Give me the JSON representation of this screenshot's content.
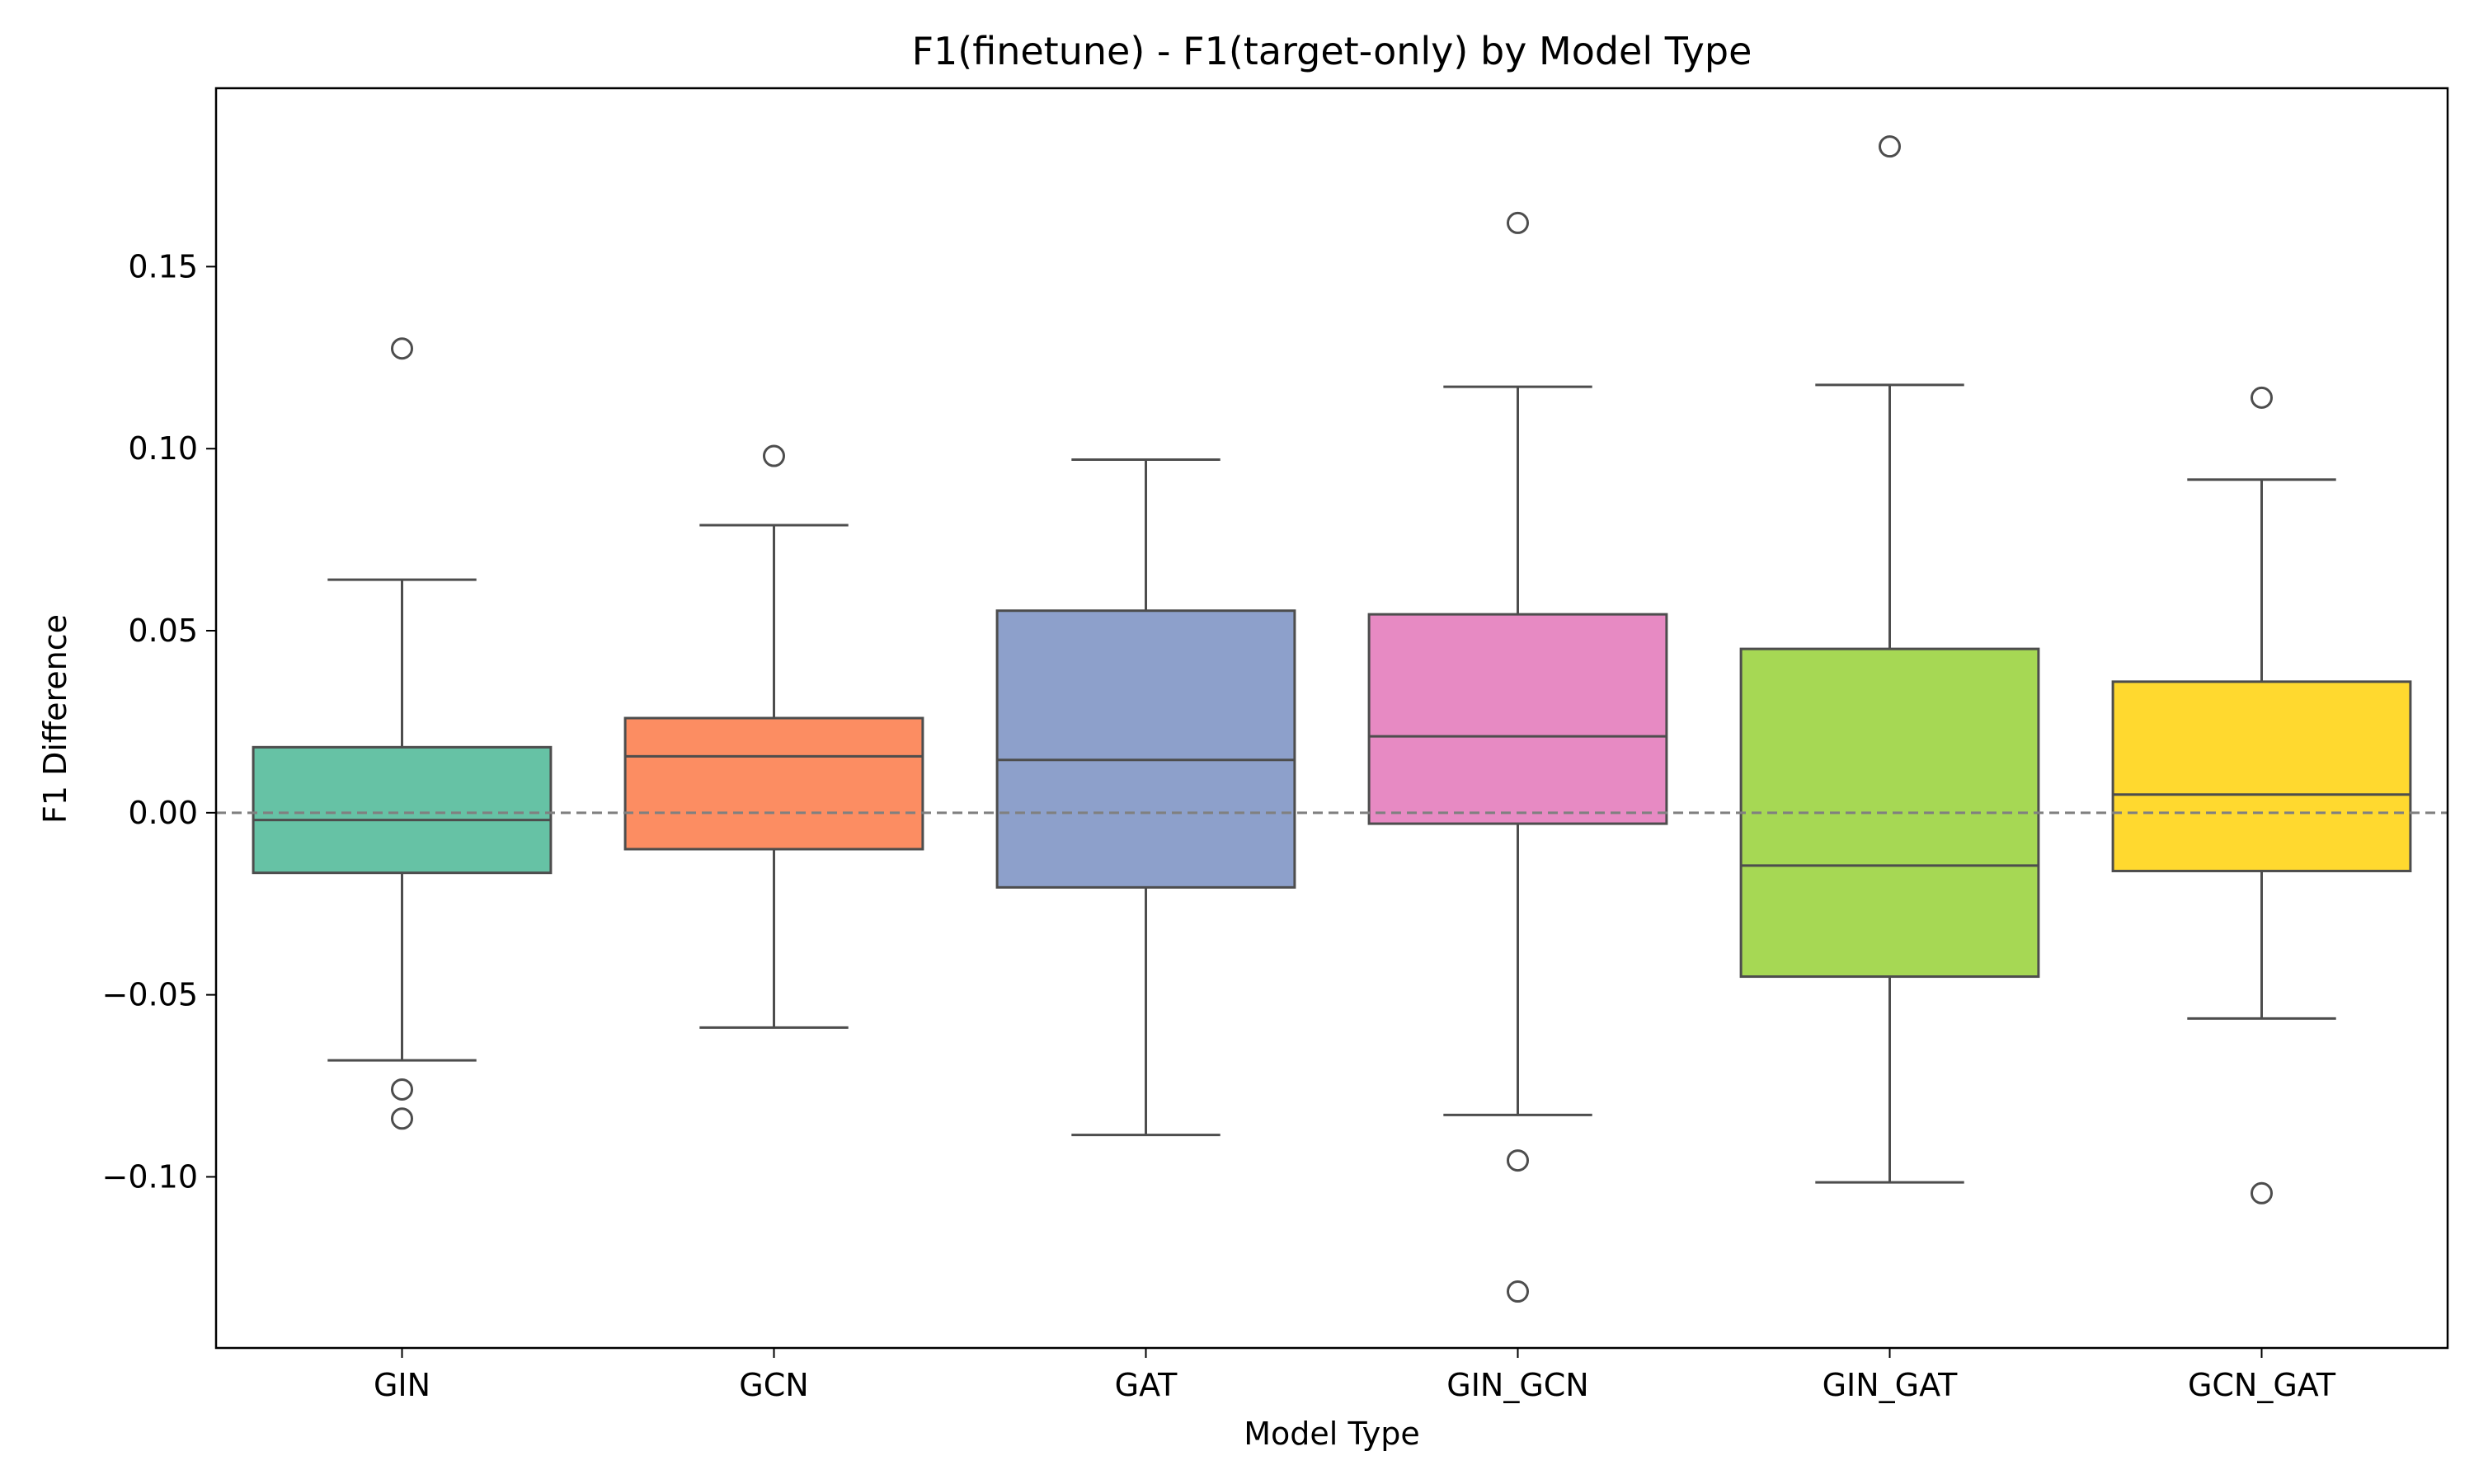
{
  "chart_data": {
    "type": "box",
    "title": "F1(finetune) - F1(target-only) by Model Type",
    "xlabel": "Model Type",
    "ylabel": "F1 Difference",
    "ylim": [
      -0.147,
      0.199
    ],
    "yticks": [
      -0.1,
      -0.05,
      0.0,
      0.05,
      0.1,
      0.15
    ],
    "ytick_labels": [
      "−0.10",
      "−0.05",
      "0.00",
      "0.05",
      "0.10",
      "0.15"
    ],
    "reference_line": 0.0,
    "categories": [
      "GIN",
      "GCN",
      "GAT",
      "GIN_GCN",
      "GIN_GAT",
      "GCN_GAT"
    ],
    "boxes": [
      {
        "name": "GIN",
        "whisker_low": -0.068,
        "q1": -0.0165,
        "median": -0.002,
        "q3": 0.018,
        "whisker_high": 0.064,
        "fliers": [
          0.1275,
          -0.076,
          -0.084
        ],
        "color": "#66c2a5"
      },
      {
        "name": "GCN",
        "whisker_low": -0.059,
        "q1": -0.01,
        "median": 0.0155,
        "q3": 0.026,
        "whisker_high": 0.079,
        "fliers": [
          0.098
        ],
        "color": "#fc8d62"
      },
      {
        "name": "GAT",
        "whisker_low": -0.0885,
        "q1": -0.0205,
        "median": 0.0145,
        "q3": 0.0555,
        "whisker_high": 0.097,
        "fliers": [],
        "color": "#8da0cb"
      },
      {
        "name": "GIN_GCN",
        "whisker_low": -0.083,
        "q1": -0.003,
        "median": 0.021,
        "q3": 0.0545,
        "whisker_high": 0.117,
        "fliers": [
          0.162,
          -0.0955,
          -0.1315
        ],
        "color": "#e78ac3"
      },
      {
        "name": "GIN_GAT",
        "whisker_low": -0.1015,
        "q1": -0.045,
        "median": -0.0145,
        "q3": 0.045,
        "whisker_high": 0.1175,
        "fliers": [
          0.183
        ],
        "color": "#a6d854"
      },
      {
        "name": "GCN_GAT",
        "whisker_low": -0.0565,
        "q1": -0.016,
        "median": 0.005,
        "q3": 0.036,
        "whisker_high": 0.0915,
        "fliers": [
          0.114,
          -0.1045
        ],
        "color": "#ffd92f"
      }
    ],
    "grid": false,
    "legend": "none"
  }
}
